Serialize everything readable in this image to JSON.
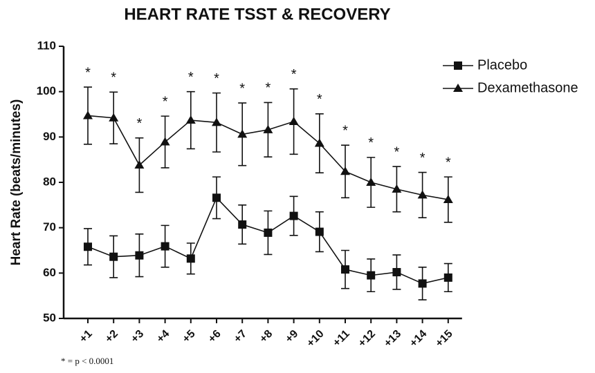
{
  "chart_data": {
    "type": "line",
    "title": "HEART RATE TSST & RECOVERY",
    "y_label": "Heart Rate (beats/minutes)",
    "footnote": "* = p < 0.0001",
    "categories": [
      "+1",
      "+2",
      "+3",
      "+4",
      "+5",
      "+6",
      "+7",
      "+8",
      "+9",
      "+10",
      "+11",
      "+12",
      "+13",
      "+14",
      "+15"
    ],
    "annotations": [
      "*",
      "*",
      "*",
      "*",
      "*",
      "*",
      "*",
      "*",
      "*",
      "*",
      "*",
      "*",
      "*",
      "*",
      "*"
    ],
    "series": [
      {
        "name": "Placebo",
        "color": "#111111",
        "marker": "square",
        "values": [
          65.8,
          63.6,
          63.9,
          65.9,
          63.2,
          76.6,
          70.7,
          68.9,
          72.6,
          69.1,
          60.8,
          59.5,
          60.2,
          57.7,
          59.0
        ],
        "errors": [
          4.0,
          4.6,
          4.7,
          4.6,
          3.4,
          4.6,
          4.3,
          4.8,
          4.3,
          4.4,
          4.2,
          3.6,
          3.8,
          3.6,
          3.1
        ]
      },
      {
        "name": "Dexamethasone",
        "color": "#111111",
        "marker": "triangle",
        "values": [
          94.7,
          94.2,
          83.8,
          88.9,
          93.7,
          93.2,
          90.6,
          91.6,
          93.4,
          88.6,
          82.4,
          80.0,
          78.5,
          77.2,
          76.2
        ],
        "errors": [
          6.3,
          5.7,
          6.0,
          5.7,
          6.3,
          6.5,
          6.9,
          6.0,
          7.2,
          6.5,
          5.8,
          5.5,
          5.0,
          5.0,
          5.0
        ]
      }
    ],
    "ylim": [
      50,
      110
    ],
    "yticks": [
      50,
      60,
      70,
      80,
      90,
      100,
      110
    ],
    "grid": false,
    "legend": "top-right"
  }
}
